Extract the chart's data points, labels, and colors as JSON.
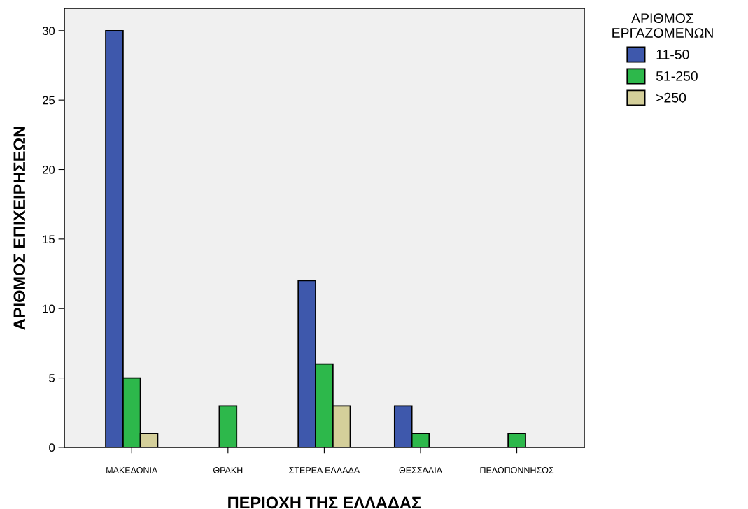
{
  "chart_data": {
    "type": "bar",
    "xlabel": "ΠΕΡΙΟΧΗ ΤΗΣ ΕΛΛΑΔΑΣ",
    "ylabel": "ΑΡΙΘΜΟΣ ΕΠΙΧΕΙΡΗΣΕΩΝ",
    "legend_title": "ΑΡΙΘΜΟΣ\nΕΡΓΑΖΟΜΕΝΩΝ",
    "categories": [
      "ΜΑΚΕΔΟΝΙΑ",
      "ΘΡΑΚΗ",
      "ΣΤΕΡΕΑ ΕΛΛΑΔΑ",
      "ΘΕΣΣΑΛΙΑ",
      "ΠΕΛΟΠΟΝΝΗΣΟΣ"
    ],
    "series": [
      {
        "name": "11-50",
        "color": "#3e58ac",
        "values": [
          30,
          null,
          12,
          3,
          null
        ]
      },
      {
        "name": "51-250",
        "color": "#2db84b",
        "values": [
          5,
          3,
          6,
          1,
          1
        ]
      },
      {
        "name": ">250",
        "color": "#d4cf9a",
        "values": [
          1,
          null,
          3,
          null,
          null
        ]
      }
    ],
    "ylim": [
      0,
      31.6
    ],
    "yticks": [
      0,
      5,
      10,
      15,
      20,
      25,
      30
    ],
    "grid": false,
    "legend": "top right"
  }
}
